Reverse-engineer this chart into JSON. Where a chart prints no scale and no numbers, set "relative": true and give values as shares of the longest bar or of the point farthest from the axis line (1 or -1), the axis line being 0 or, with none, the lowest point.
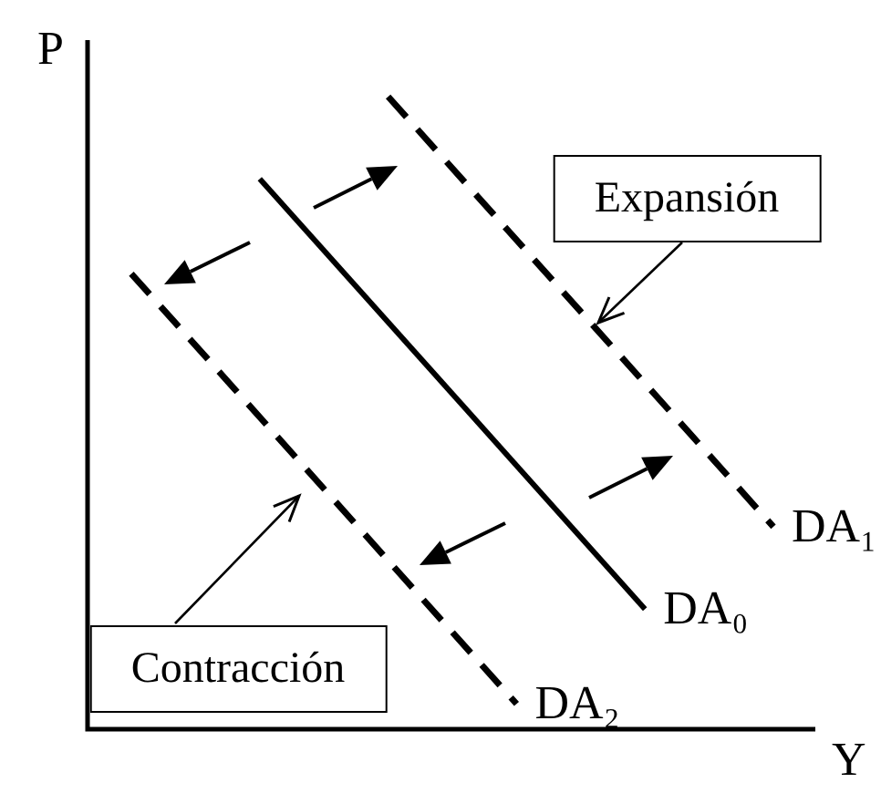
{
  "chart_data": {
    "type": "line",
    "relative": true,
    "xlabel": "Y",
    "ylabel": "P",
    "marker": "none",
    "categories": [
      null,
      null,
      null,
      null,
      null,
      null
    ],
    "series": [
      {
        "name": "DA₀",
        "color": "#000000",
        "line_style": "solid",
        "values": [
          null,
          0.87,
          null,
          null,
          0.19,
          null
        ]
      },
      {
        "name": "DA₁",
        "color": "#000000",
        "line_style": "dashed",
        "values": [
          null,
          null,
          1,
          null,
          null,
          0.32
        ]
      },
      {
        "name": "DA₂",
        "color": "#000000",
        "line_style": "dashed",
        "values": [
          0.72,
          null,
          null,
          0.04,
          null,
          null
        ]
      }
    ],
    "annotations": [
      "Expansión",
      "Contracción"
    ]
  }
}
